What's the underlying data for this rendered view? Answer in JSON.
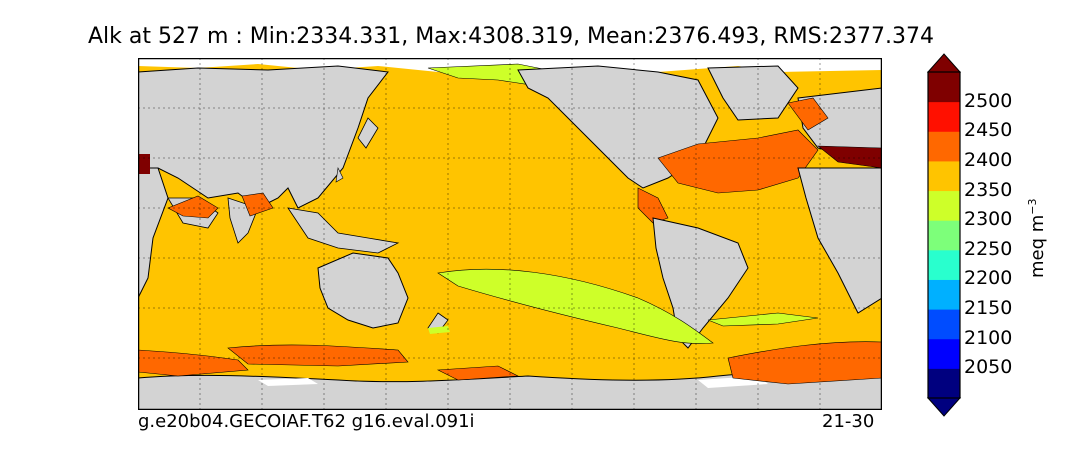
{
  "title": "Alk at 527 m : Min:2334.331, Max:4308.319, Mean:2376.493, RMS:2377.374",
  "footer": {
    "left": "g.e20b04.GECOIAF.T62 g16.eval.091i",
    "right": "21-30"
  },
  "colorbar": {
    "unit": "meq m",
    "unit_exponent": "−3",
    "tick_labels": [
      "2500",
      "2450",
      "2400",
      "2350",
      "2300",
      "2250",
      "2200",
      "2150",
      "2100",
      "2050"
    ],
    "levels": [
      2050,
      2100,
      2150,
      2200,
      2250,
      2300,
      2350,
      2400,
      2450,
      2500
    ],
    "colors": [
      "#00007f",
      "#0000ff",
      "#004cff",
      "#00b0ff",
      "#29ffce",
      "#7dff7a",
      "#ceff29",
      "#ffc400",
      "#ff6800",
      "#ff1000",
      "#7f0000"
    ]
  },
  "map_colors": {
    "land": "#d3d3d3",
    "ice": "#ffffff",
    "ocean_main": "#ffc400"
  }
}
